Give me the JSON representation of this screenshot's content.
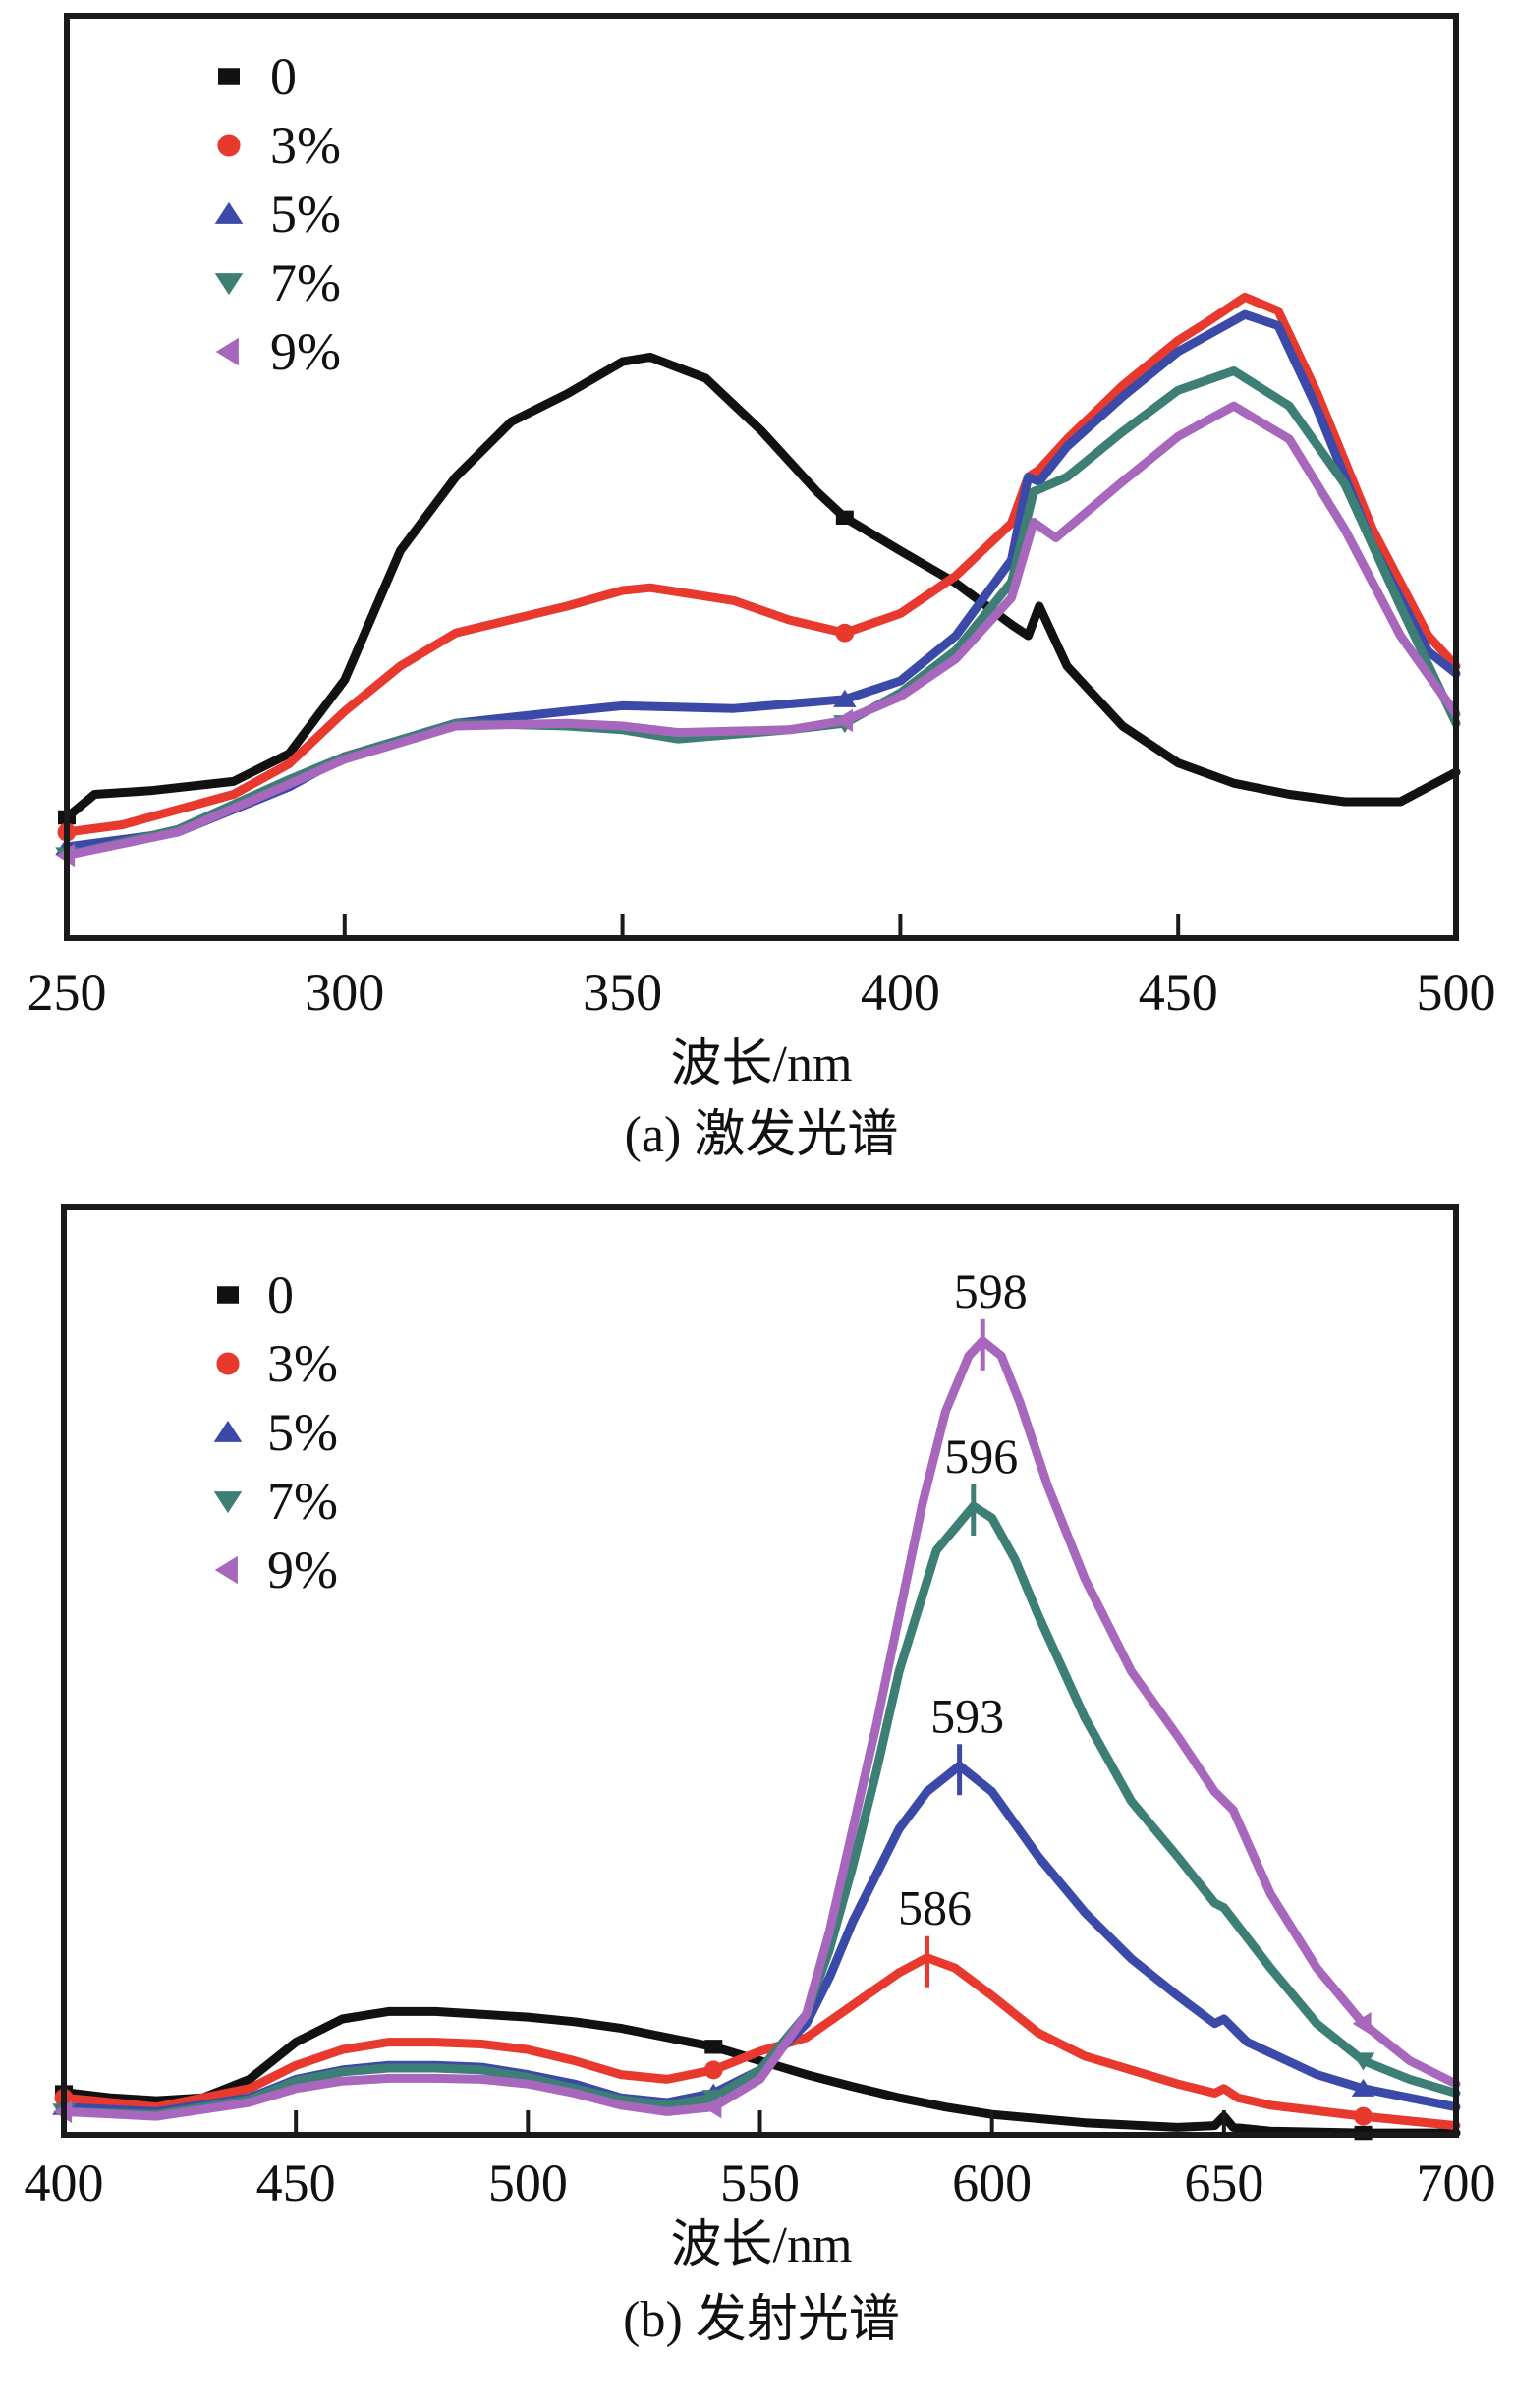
{
  "chart_data": [
    {
      "id": "a",
      "type": "line",
      "title": "",
      "caption": "(a) 激发光谱",
      "xlabel": "波长/nm",
      "ylabel": "",
      "xlim": [
        250,
        500
      ],
      "ylim": [
        0,
        1
      ],
      "xticks": [
        250,
        300,
        350,
        400,
        450,
        500
      ],
      "yticks": [],
      "grid": false,
      "legend_position": "top-left",
      "series": [
        {
          "name": "0",
          "color": "#111111",
          "marker": "square",
          "marker_x": [
            250,
            390
          ],
          "x": [
            250,
            255,
            265,
            280,
            290,
            300,
            310,
            320,
            330,
            340,
            350,
            355,
            365,
            375,
            385,
            390,
            400,
            410,
            420,
            423,
            425,
            430,
            440,
            450,
            460,
            470,
            480,
            490,
            500
          ],
          "y": [
            0.131,
            0.156,
            0.16,
            0.17,
            0.2,
            0.28,
            0.42,
            0.5,
            0.56,
            0.59,
            0.625,
            0.63,
            0.607,
            0.55,
            0.484,
            0.456,
            0.42,
            0.385,
            0.34,
            0.328,
            0.36,
            0.295,
            0.23,
            0.19,
            0.168,
            0.156,
            0.148,
            0.148,
            0.18
          ]
        },
        {
          "name": "3%",
          "color": "#e8392e",
          "marker": "circle",
          "marker_x": [
            250,
            390
          ],
          "x": [
            250,
            260,
            280,
            290,
            300,
            310,
            320,
            340,
            350,
            355,
            370,
            380,
            390,
            400,
            410,
            420,
            423,
            425,
            430,
            440,
            450,
            455,
            462,
            468,
            475,
            485,
            495,
            500
          ],
          "y": [
            0.115,
            0.123,
            0.156,
            0.189,
            0.246,
            0.295,
            0.331,
            0.36,
            0.377,
            0.38,
            0.366,
            0.345,
            0.331,
            0.352,
            0.393,
            0.45,
            0.5,
            0.508,
            0.541,
            0.599,
            0.648,
            0.667,
            0.695,
            0.68,
            0.591,
            0.443,
            0.328,
            0.295
          ]
        },
        {
          "name": "5%",
          "color": "#3b4aa8",
          "marker": "triangle-up",
          "marker_x": [
            250,
            390
          ],
          "x": [
            250,
            270,
            290,
            300,
            320,
            340,
            350,
            370,
            390,
            400,
            410,
            420,
            423,
            425,
            430,
            440,
            450,
            462,
            468,
            475,
            485,
            495,
            500
          ],
          "y": [
            0.099,
            0.115,
            0.164,
            0.197,
            0.233,
            0.246,
            0.252,
            0.249,
            0.259,
            0.279,
            0.328,
            0.41,
            0.5,
            0.495,
            0.533,
            0.587,
            0.636,
            0.676,
            0.664,
            0.574,
            0.426,
            0.311,
            0.287
          ]
        },
        {
          "name": "7%",
          "color": "#3d7f74",
          "marker": "triangle-down",
          "marker_x": [
            250,
            390
          ],
          "x": [
            250,
            270,
            290,
            300,
            320,
            340,
            350,
            360,
            380,
            390,
            400,
            410,
            420,
            424,
            430,
            440,
            450,
            460,
            470,
            480,
            490,
            500
          ],
          "y": [
            0.09,
            0.118,
            0.172,
            0.197,
            0.233,
            0.23,
            0.226,
            0.216,
            0.226,
            0.233,
            0.266,
            0.312,
            0.386,
            0.484,
            0.5,
            0.549,
            0.594,
            0.615,
            0.577,
            0.492,
            0.36,
            0.233
          ]
        },
        {
          "name": "9%",
          "color": "#a667bd",
          "marker": "triangle-left",
          "marker_x": [
            250,
            390
          ],
          "x": [
            250,
            270,
            290,
            300,
            320,
            340,
            350,
            360,
            380,
            390,
            400,
            410,
            420,
            424,
            428,
            440,
            450,
            460,
            470,
            480,
            490,
            500
          ],
          "y": [
            0.09,
            0.115,
            0.167,
            0.194,
            0.23,
            0.233,
            0.23,
            0.223,
            0.226,
            0.236,
            0.262,
            0.303,
            0.369,
            0.451,
            0.434,
            0.495,
            0.544,
            0.577,
            0.541,
            0.443,
            0.328,
            0.243
          ]
        }
      ],
      "annotations": []
    },
    {
      "id": "b",
      "type": "line",
      "title": "",
      "caption": "(b) 发射光谱",
      "xlabel": "波长/nm",
      "ylabel": "",
      "xlim": [
        400,
        700
      ],
      "ylim": [
        0,
        1
      ],
      "xticks": [
        400,
        450,
        500,
        550,
        600,
        650,
        700
      ],
      "yticks": [],
      "grid": false,
      "legend_position": "top-left",
      "series": [
        {
          "name": "0",
          "color": "#111111",
          "marker": "square",
          "marker_x": [
            400,
            540,
            680
          ],
          "x": [
            400,
            410,
            420,
            430,
            440,
            450,
            460,
            470,
            480,
            490,
            500,
            510,
            520,
            530,
            540,
            550,
            560,
            570,
            580,
            590,
            600,
            620,
            640,
            648,
            650,
            652,
            660,
            680,
            700
          ],
          "y": [
            0.046,
            0.04,
            0.037,
            0.04,
            0.06,
            0.1,
            0.125,
            0.133,
            0.133,
            0.13,
            0.127,
            0.122,
            0.115,
            0.105,
            0.095,
            0.08,
            0.065,
            0.052,
            0.04,
            0.03,
            0.022,
            0.013,
            0.008,
            0.01,
            0.02,
            0.008,
            0.004,
            0.002,
            0.002
          ]
        },
        {
          "name": "3%",
          "color": "#e8392e",
          "marker": "circle",
          "marker_x": [
            400,
            540,
            680
          ],
          "x": [
            400,
            420,
            440,
            450,
            460,
            470,
            480,
            490,
            500,
            510,
            520,
            530,
            540,
            550,
            560,
            570,
            580,
            586,
            592,
            600,
            610,
            620,
            630,
            640,
            648,
            650,
            653,
            660,
            680,
            700
          ],
          "y": [
            0.04,
            0.03,
            0.05,
            0.075,
            0.092,
            0.1,
            0.1,
            0.098,
            0.092,
            0.08,
            0.065,
            0.06,
            0.07,
            0.09,
            0.105,
            0.14,
            0.175,
            0.191,
            0.18,
            0.15,
            0.11,
            0.085,
            0.07,
            0.055,
            0.045,
            0.05,
            0.04,
            0.032,
            0.02,
            0.01
          ]
        },
        {
          "name": "5%",
          "color": "#3b4aa8",
          "marker": "triangle-up",
          "marker_x": [
            400,
            540,
            680
          ],
          "x": [
            400,
            420,
            440,
            450,
            460,
            470,
            480,
            490,
            500,
            510,
            520,
            530,
            540,
            550,
            560,
            565,
            570,
            580,
            586,
            593,
            600,
            610,
            620,
            630,
            640,
            648,
            650,
            655,
            670,
            680,
            700
          ],
          "y": [
            0.03,
            0.025,
            0.04,
            0.06,
            0.07,
            0.075,
            0.075,
            0.073,
            0.065,
            0.055,
            0.04,
            0.035,
            0.045,
            0.07,
            0.12,
            0.17,
            0.23,
            0.33,
            0.37,
            0.398,
            0.37,
            0.3,
            0.24,
            0.19,
            0.15,
            0.12,
            0.125,
            0.1,
            0.065,
            0.05,
            0.03
          ]
        },
        {
          "name": "7%",
          "color": "#3d7f74",
          "marker": "triangle-down",
          "marker_x": [
            400,
            540,
            680
          ],
          "x": [
            400,
            420,
            440,
            450,
            460,
            470,
            480,
            490,
            500,
            510,
            520,
            530,
            540,
            550,
            560,
            565,
            570,
            575,
            580,
            588,
            596,
            600,
            605,
            610,
            620,
            630,
            640,
            648,
            650,
            660,
            670,
            680,
            690,
            700
          ],
          "y": [
            0.025,
            0.022,
            0.038,
            0.058,
            0.068,
            0.072,
            0.072,
            0.07,
            0.062,
            0.05,
            0.038,
            0.032,
            0.04,
            0.07,
            0.13,
            0.2,
            0.29,
            0.39,
            0.5,
            0.63,
            0.678,
            0.665,
            0.62,
            0.56,
            0.45,
            0.36,
            0.3,
            0.25,
            0.245,
            0.18,
            0.12,
            0.08,
            0.06,
            0.045
          ]
        },
        {
          "name": "9%",
          "color": "#a667bd",
          "marker": "triangle-left",
          "marker_x": [
            400,
            540,
            680
          ],
          "x": [
            400,
            420,
            440,
            450,
            460,
            470,
            480,
            490,
            500,
            510,
            520,
            530,
            540,
            550,
            560,
            565,
            570,
            575,
            580,
            585,
            590,
            595,
            598,
            602,
            606,
            612,
            620,
            630,
            640,
            648,
            652,
            660,
            670,
            680,
            690,
            700
          ],
          "y": [
            0.025,
            0.02,
            0.035,
            0.05,
            0.058,
            0.061,
            0.061,
            0.06,
            0.055,
            0.045,
            0.032,
            0.025,
            0.03,
            0.06,
            0.13,
            0.22,
            0.33,
            0.44,
            0.56,
            0.68,
            0.78,
            0.84,
            0.856,
            0.84,
            0.79,
            0.7,
            0.6,
            0.5,
            0.43,
            0.37,
            0.35,
            0.26,
            0.18,
            0.12,
            0.08,
            0.055
          ]
        }
      ],
      "annotations": [
        {
          "text": "586",
          "x": 586,
          "y": 0.191,
          "series": "3%"
        },
        {
          "text": "593",
          "x": 593,
          "y": 0.398,
          "series": "5%"
        },
        {
          "text": "596",
          "x": 596,
          "y": 0.678,
          "series": "7%"
        },
        {
          "text": "598",
          "x": 598,
          "y": 0.856,
          "series": "9%"
        }
      ]
    }
  ]
}
